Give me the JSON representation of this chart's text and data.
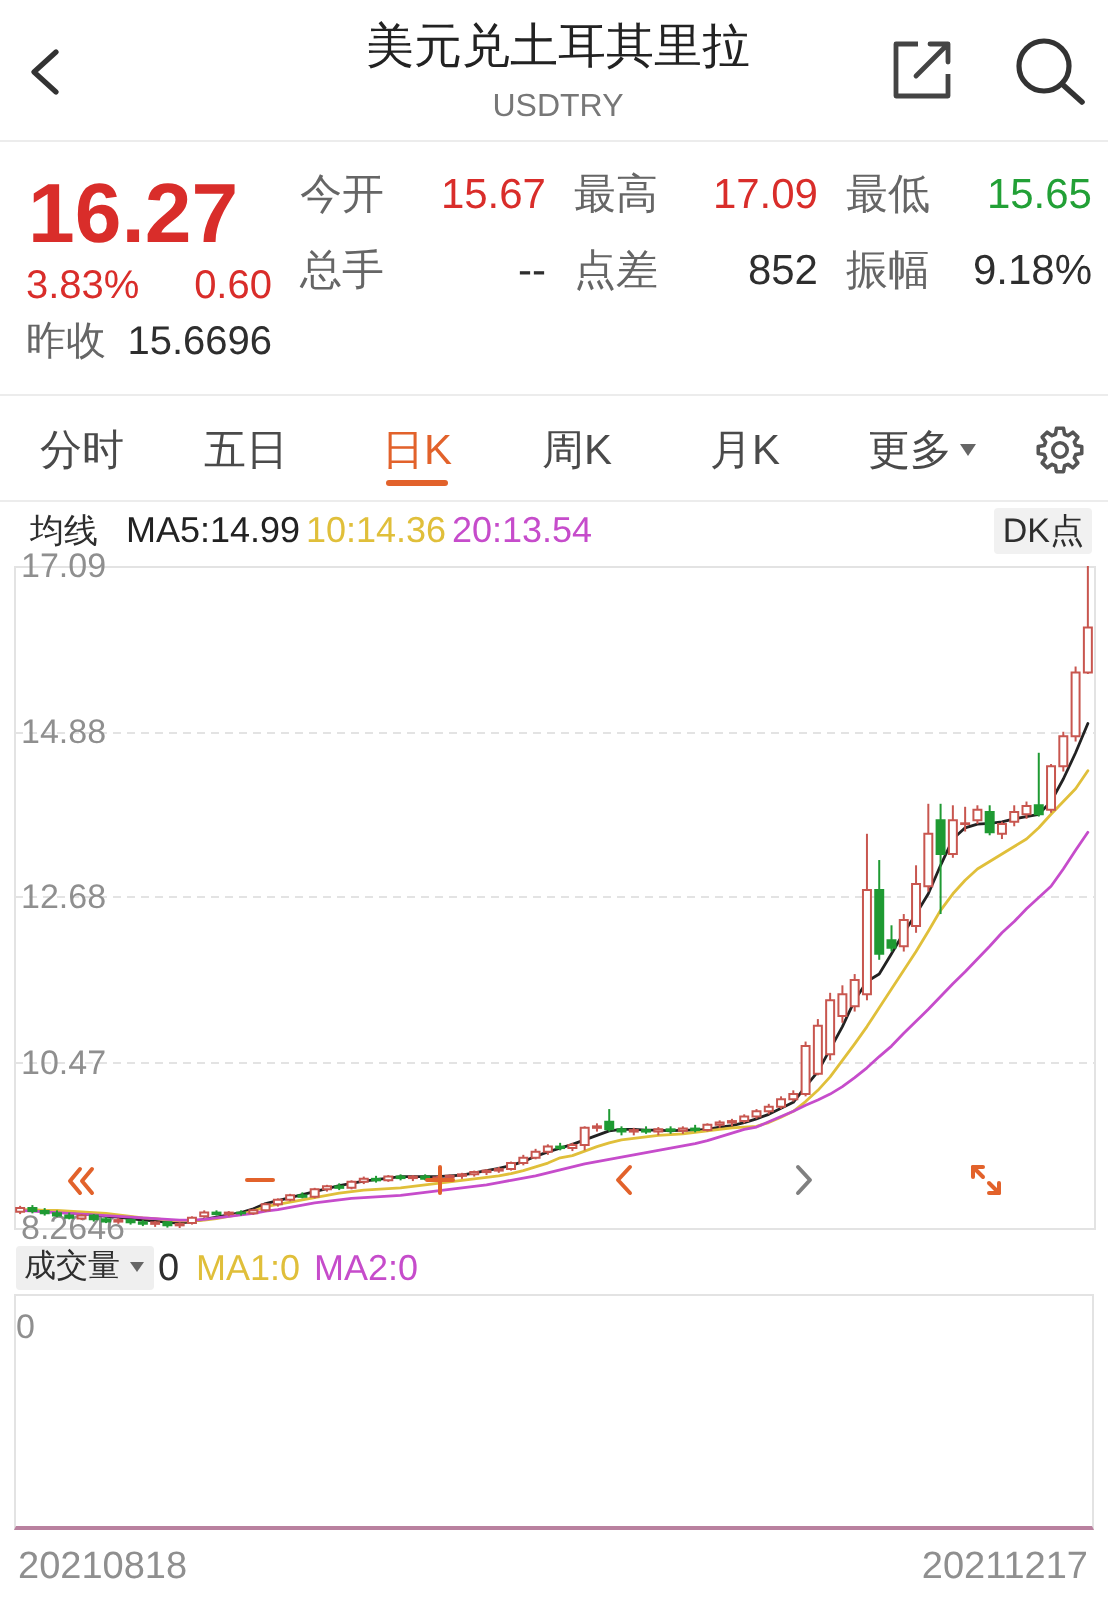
{
  "chart_data": [
    {
      "type": "other",
      "title": "美元兑土耳其里拉",
      "subtitle": "USDTRY",
      "annotations": [
        "16.27",
        "3.83%",
        "0.60",
        "昨收",
        "15.6696",
        "今开",
        "15.67",
        "最高",
        "17.09",
        "最低",
        "15.65",
        "总手",
        "--",
        "点差",
        "852",
        "振幅",
        "9.18%",
        "分时",
        "五日",
        "日K",
        "周K",
        "月K",
        "更多"
      ]
    },
    {
      "type": "candlestick",
      "categories": [
        null,
        null,
        null,
        null,
        null,
        null,
        null,
        null,
        null,
        null,
        null,
        null,
        null,
        null,
        null,
        null,
        null,
        null,
        null,
        null,
        null,
        null,
        null,
        null,
        null,
        null,
        null,
        null,
        null,
        null,
        null,
        null,
        null,
        null,
        null,
        null,
        null,
        null,
        null,
        null,
        null,
        null,
        null,
        null,
        null,
        null,
        null,
        null,
        null,
        null,
        null,
        null,
        null,
        null,
        null,
        null,
        null,
        null,
        null,
        null,
        null,
        null,
        null,
        null,
        null,
        null,
        null,
        null,
        null,
        null,
        null,
        null,
        null,
        null,
        null,
        null,
        null,
        null,
        null,
        null,
        null,
        null,
        null,
        null,
        null,
        null,
        null,
        null
      ],
      "ohlc": [
        [
          8.48,
          8.56,
          8.45,
          8.53
        ],
        [
          8.53,
          8.57,
          8.46,
          8.49
        ],
        [
          8.49,
          8.53,
          8.43,
          8.46
        ],
        [
          8.46,
          8.5,
          8.41,
          8.43
        ],
        [
          8.43,
          8.47,
          8.38,
          8.4
        ],
        [
          8.39,
          8.45,
          8.37,
          8.43
        ],
        [
          8.43,
          8.45,
          8.35,
          8.38
        ],
        [
          8.38,
          8.41,
          8.33,
          8.35
        ],
        [
          8.35,
          8.4,
          8.32,
          8.37
        ],
        [
          8.37,
          8.39,
          8.31,
          8.34
        ],
        [
          8.34,
          8.37,
          8.29,
          8.32
        ],
        [
          8.32,
          8.36,
          8.28,
          8.34
        ],
        [
          8.34,
          8.35,
          8.27,
          8.3
        ],
        [
          8.3,
          8.34,
          8.2646,
          8.32
        ],
        [
          8.33,
          8.42,
          8.31,
          8.4
        ],
        [
          8.42,
          8.5,
          8.4,
          8.47
        ],
        [
          8.47,
          8.5,
          8.43,
          8.45
        ],
        [
          8.45,
          8.49,
          8.42,
          8.47
        ],
        [
          8.47,
          8.5,
          8.43,
          8.46
        ],
        [
          8.46,
          8.52,
          8.44,
          8.5
        ],
        [
          8.5,
          8.6,
          8.48,
          8.58
        ],
        [
          8.58,
          8.66,
          8.55,
          8.64
        ],
        [
          8.64,
          8.72,
          8.62,
          8.7
        ],
        [
          8.7,
          8.74,
          8.66,
          8.68
        ],
        [
          8.68,
          8.8,
          8.66,
          8.78
        ],
        [
          8.78,
          8.84,
          8.75,
          8.82
        ],
        [
          8.82,
          8.86,
          8.77,
          8.8
        ],
        [
          8.8,
          8.9,
          8.78,
          8.88
        ],
        [
          8.88,
          8.95,
          8.85,
          8.92
        ],
        [
          8.92,
          8.96,
          8.87,
          8.9
        ],
        [
          8.9,
          8.97,
          8.88,
          8.95
        ],
        [
          8.95,
          8.98,
          8.9,
          8.93
        ],
        [
          8.93,
          8.97,
          8.89,
          8.95
        ],
        [
          8.95,
          8.98,
          8.9,
          8.92
        ],
        [
          8.92,
          8.96,
          8.88,
          8.94
        ],
        [
          8.94,
          8.98,
          8.91,
          8.96
        ],
        [
          8.96,
          9.0,
          8.92,
          8.98
        ],
        [
          8.98,
          9.03,
          8.95,
          9.01
        ],
        [
          9.01,
          9.05,
          8.97,
          9.03
        ],
        [
          9.03,
          9.08,
          9.0,
          9.05
        ],
        [
          9.05,
          9.15,
          9.03,
          9.13
        ],
        [
          9.13,
          9.24,
          9.1,
          9.2
        ],
        [
          9.2,
          9.32,
          9.18,
          9.28
        ],
        [
          9.28,
          9.38,
          9.24,
          9.35
        ],
        [
          9.35,
          9.4,
          9.3,
          9.33
        ],
        [
          9.33,
          9.4,
          9.29,
          9.37
        ],
        [
          9.37,
          9.62,
          9.3,
          9.6
        ],
        [
          9.6,
          9.66,
          9.55,
          9.62
        ],
        [
          9.68,
          9.85,
          9.55,
          9.58
        ],
        [
          9.58,
          9.62,
          9.5,
          9.55
        ],
        [
          9.55,
          9.6,
          9.5,
          9.57
        ],
        [
          9.57,
          9.62,
          9.52,
          9.55
        ],
        [
          9.55,
          9.61,
          9.5,
          9.58
        ],
        [
          9.58,
          9.62,
          9.52,
          9.56
        ],
        [
          9.56,
          9.62,
          9.52,
          9.59
        ],
        [
          9.59,
          9.64,
          9.54,
          9.57
        ],
        [
          9.57,
          9.66,
          9.55,
          9.64
        ],
        [
          9.64,
          9.7,
          9.6,
          9.67
        ],
        [
          9.67,
          9.72,
          9.62,
          9.69
        ],
        [
          9.69,
          9.78,
          9.66,
          9.75
        ],
        [
          9.75,
          9.85,
          9.72,
          9.82
        ],
        [
          9.82,
          9.92,
          9.78,
          9.88
        ],
        [
          9.88,
          10.02,
          9.85,
          9.98
        ],
        [
          9.98,
          10.1,
          9.95,
          10.05
        ],
        [
          10.05,
          10.75,
          10.02,
          10.69
        ],
        [
          10.32,
          11.05,
          10.3,
          10.96
        ],
        [
          10.58,
          11.4,
          10.5,
          11.3
        ],
        [
          11.09,
          11.5,
          11.0,
          11.38
        ],
        [
          11.22,
          11.65,
          11.15,
          11.57
        ],
        [
          11.38,
          13.52,
          11.3,
          12.77
        ],
        [
          12.77,
          13.17,
          11.84,
          11.92
        ],
        [
          12.1,
          12.3,
          11.95,
          12.0
        ],
        [
          12.02,
          12.45,
          11.95,
          12.37
        ],
        [
          12.29,
          13.1,
          12.2,
          12.85
        ],
        [
          12.82,
          13.92,
          12.75,
          13.52
        ],
        [
          13.7,
          13.92,
          12.45,
          13.25
        ],
        [
          13.25,
          13.9,
          13.2,
          13.7
        ],
        [
          13.65,
          13.88,
          13.55,
          13.66
        ],
        [
          13.7,
          13.9,
          13.65,
          13.84
        ],
        [
          13.81,
          13.9,
          13.5,
          13.54
        ],
        [
          13.52,
          13.68,
          13.45,
          13.65
        ],
        [
          13.68,
          13.9,
          13.62,
          13.81
        ],
        [
          13.78,
          13.95,
          13.72,
          13.89
        ],
        [
          13.9,
          14.6,
          13.75,
          13.78
        ],
        [
          13.84,
          14.45,
          13.8,
          14.42
        ],
        [
          14.42,
          14.88,
          14.35,
          14.82
        ],
        [
          14.82,
          15.75,
          14.75,
          15.67
        ],
        [
          15.67,
          17.09,
          15.65,
          16.27
        ]
      ],
      "series": [
        {
          "type": "line",
          "name": "MA5:14.99",
          "color": "#222222",
          "values": [
            8.5,
            8.5,
            8.49,
            8.48,
            8.47,
            8.45,
            8.44,
            8.42,
            8.41,
            8.39,
            8.37,
            8.36,
            8.34,
            8.33,
            8.35,
            8.38,
            8.41,
            8.44,
            8.47,
            8.52,
            8.59,
            8.63,
            8.67,
            8.71,
            8.75,
            8.79,
            8.83,
            8.86,
            8.89,
            8.91,
            8.93,
            8.95,
            8.95,
            8.95,
            8.95,
            8.96,
            8.97,
            9.0,
            9.03,
            9.06,
            9.1,
            9.15,
            9.22,
            9.28,
            9.33,
            9.38,
            9.44,
            9.5,
            9.56,
            9.58,
            9.58,
            9.57,
            9.57,
            9.56,
            9.57,
            9.57,
            9.58,
            9.61,
            9.63,
            9.67,
            9.72,
            9.78,
            9.86,
            9.94,
            10.15,
            10.35,
            10.65,
            10.95,
            11.3,
            11.55,
            11.65,
            11.92,
            12.2,
            12.45,
            12.72,
            13.1,
            13.45,
            13.6,
            13.65,
            13.66,
            13.68,
            13.72,
            13.75,
            13.78,
            13.95,
            14.25,
            14.6,
            14.99
          ]
        },
        {
          "type": "line",
          "name": "10:14.36",
          "color": "#e0bf3a",
          "values": [
            8.51,
            8.51,
            8.5,
            8.5,
            8.49,
            8.48,
            8.47,
            8.46,
            8.44,
            8.42,
            8.4,
            8.39,
            8.37,
            8.36,
            8.36,
            8.37,
            8.39,
            8.42,
            8.45,
            8.49,
            8.55,
            8.58,
            8.61,
            8.64,
            8.67,
            8.7,
            8.73,
            8.75,
            8.77,
            8.78,
            8.79,
            8.8,
            8.82,
            8.84,
            8.86,
            8.88,
            8.9,
            8.92,
            8.94,
            8.96,
            8.99,
            9.03,
            9.08,
            9.13,
            9.2,
            9.23,
            9.29,
            9.35,
            9.4,
            9.44,
            9.46,
            9.48,
            9.5,
            9.51,
            9.52,
            9.54,
            9.56,
            9.58,
            9.6,
            9.61,
            9.62,
            9.67,
            9.74,
            9.82,
            9.95,
            10.1,
            10.28,
            10.5,
            10.72,
            10.95,
            11.2,
            11.45,
            11.7,
            11.95,
            12.22,
            12.5,
            12.72,
            12.9,
            13.05,
            13.15,
            13.25,
            13.35,
            13.45,
            13.6,
            13.78,
            13.95,
            14.12,
            14.36
          ]
        },
        {
          "type": "line",
          "name": "20:13.54",
          "color": "#c64ccb",
          "values": [
            8.5,
            8.49,
            8.48,
            8.47,
            8.46,
            8.45,
            8.44,
            8.43,
            8.42,
            8.41,
            8.4,
            8.39,
            8.38,
            8.37,
            8.37,
            8.38,
            8.4,
            8.42,
            8.44,
            8.46,
            8.49,
            8.51,
            8.54,
            8.57,
            8.6,
            8.62,
            8.64,
            8.66,
            8.67,
            8.68,
            8.69,
            8.7,
            8.72,
            8.74,
            8.76,
            8.78,
            8.8,
            8.82,
            8.84,
            8.87,
            8.9,
            8.93,
            8.96,
            9.0,
            9.04,
            9.08,
            9.12,
            9.15,
            9.18,
            9.21,
            9.24,
            9.27,
            9.3,
            9.33,
            9.36,
            9.39,
            9.43,
            9.48,
            9.53,
            9.58,
            9.61,
            9.68,
            9.75,
            9.82,
            9.9,
            9.97,
            10.05,
            10.15,
            10.27,
            10.4,
            10.55,
            10.69,
            10.86,
            11.02,
            11.18,
            11.35,
            11.52,
            11.68,
            11.85,
            12.02,
            12.2,
            12.35,
            12.52,
            12.67,
            12.82,
            13.05,
            13.3,
            13.54
          ]
        }
      ],
      "legend_title": "均线",
      "legend": "top left",
      "ylim": [
        8.2646,
        17.09
      ],
      "yticks": [
        8.2646,
        10.47,
        12.68,
        14.88,
        17.09
      ],
      "grid": "y",
      "tick_labels": "y",
      "annotations": [
        "DK点"
      ]
    },
    {
      "type": "other",
      "title": "成交量",
      "annotations": [
        "0",
        "MA1:0",
        "MA2:0",
        "0",
        "20210818",
        "20211217"
      ]
    }
  ]
}
